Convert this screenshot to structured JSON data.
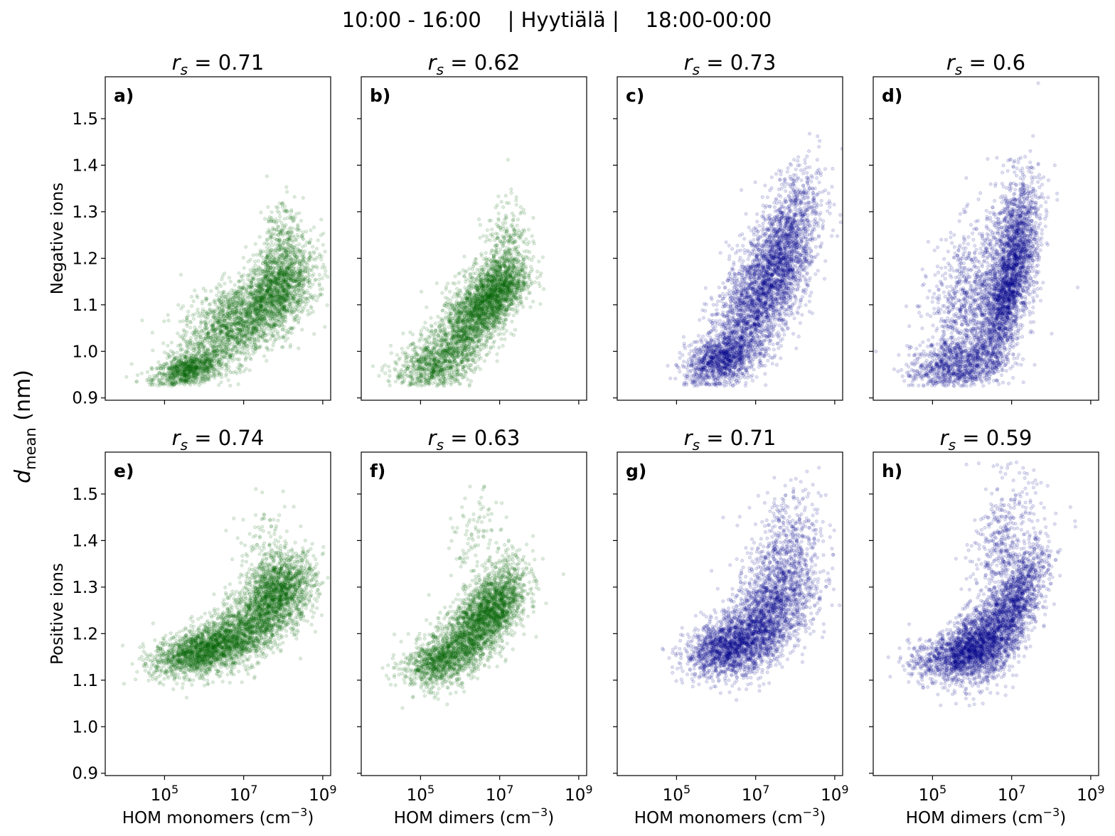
{
  "chart_data": {
    "type": "scatter",
    "suptitle": "10:00 - 16:00    | Hyytiälä |    18:00-00:00",
    "shared_ylabel": "d_mean (nm)",
    "shared_ylabel_main": "d",
    "shared_ylabel_sub": "mean",
    "shared_ylabel_unit": " (nm)",
    "row_labels": [
      "Negative ions",
      "Positive ions"
    ],
    "ylim": [
      0.895,
      1.59
    ],
    "yticks": [
      0.9,
      1.0,
      1.1,
      1.2,
      1.3,
      1.4,
      1.5
    ],
    "ytick_labels": [
      "0.9",
      "1.0",
      "1.1",
      "1.2",
      "1.3",
      "1.4",
      "1.5"
    ],
    "xscale": "log",
    "xlim_log10": [
      3.5,
      9.2
    ],
    "xticks_log10": [
      5,
      7,
      9
    ],
    "xtick_base": "10",
    "xtick_exps": [
      "5",
      "7",
      "9"
    ],
    "xlabels": [
      {
        "text": "HOM monomers (cm",
        "sup": "−3",
        "close": ")"
      },
      {
        "text": "HOM dimers (cm",
        "sup": "−3",
        "close": ")"
      },
      {
        "text": "HOM monomers (cm",
        "sup": "−3",
        "close": ")"
      },
      {
        "text": "HOM dimers (cm",
        "sup": "−3",
        "close": ")"
      }
    ],
    "colors": {
      "day": "#006400",
      "night": "#00008b"
    },
    "panels": [
      {
        "id": "a",
        "label": "a)",
        "row": 0,
        "col": 0,
        "rs": "0.71",
        "color": "day",
        "clusters": [
          [
            5.6,
            0.96,
            0.45,
            0.02,
            900,
            0.5
          ],
          [
            6.8,
            1.06,
            0.7,
            0.05,
            1600,
            0.5
          ],
          [
            7.9,
            1.14,
            0.45,
            0.05,
            1400,
            0.4
          ],
          [
            7.9,
            1.24,
            0.25,
            0.05,
            200,
            0.2
          ]
        ]
      },
      {
        "id": "b",
        "label": "b)",
        "row": 0,
        "col": 1,
        "rs": "0.62",
        "color": "day",
        "clusters": [
          [
            5.3,
            0.97,
            0.5,
            0.03,
            700,
            0.3
          ],
          [
            6.2,
            1.06,
            0.5,
            0.06,
            1400,
            0.6
          ],
          [
            6.9,
            1.12,
            0.4,
            0.04,
            1200,
            0.5
          ],
          [
            7.1,
            1.2,
            0.3,
            0.06,
            400,
            0.3
          ]
        ]
      },
      {
        "id": "c",
        "label": "c)",
        "row": 0,
        "col": 2,
        "rs": "0.73",
        "color": "night",
        "clusters": [
          [
            6.1,
            0.98,
            0.45,
            0.03,
            1000,
            0.4
          ],
          [
            7.0,
            1.1,
            0.6,
            0.08,
            1800,
            0.6
          ],
          [
            7.7,
            1.22,
            0.45,
            0.08,
            1500,
            0.5
          ]
        ]
      },
      {
        "id": "d",
        "label": "d)",
        "row": 0,
        "col": 3,
        "rs": "0.6",
        "color": "night",
        "clusters": [
          [
            5.6,
            0.97,
            0.6,
            0.03,
            900,
            0.3
          ],
          [
            6.1,
            1.1,
            0.6,
            0.09,
            1200,
            0.3
          ],
          [
            6.9,
            1.12,
            0.35,
            0.08,
            1500,
            0.7
          ],
          [
            7.1,
            1.25,
            0.3,
            0.07,
            900,
            0.3
          ]
        ]
      },
      {
        "id": "e",
        "label": "e)",
        "row": 1,
        "col": 0,
        "rs": "0.74",
        "color": "day",
        "clusters": [
          [
            5.8,
            1.16,
            0.55,
            0.025,
            1300,
            0.4
          ],
          [
            6.9,
            1.2,
            0.6,
            0.04,
            1500,
            0.5
          ],
          [
            7.9,
            1.29,
            0.45,
            0.04,
            1500,
            0.3
          ],
          [
            7.5,
            1.36,
            0.4,
            0.06,
            150,
            0.1
          ]
        ]
      },
      {
        "id": "f",
        "label": "f)",
        "row": 1,
        "col": 1,
        "rs": "0.63",
        "color": "day",
        "clusters": [
          [
            5.4,
            1.14,
            0.45,
            0.025,
            700,
            0.3
          ],
          [
            6.2,
            1.2,
            0.5,
            0.05,
            1400,
            0.6
          ],
          [
            6.9,
            1.26,
            0.4,
            0.05,
            1300,
            0.5
          ],
          [
            6.4,
            1.4,
            0.3,
            0.05,
            100,
            0.2
          ]
        ]
      },
      {
        "id": "g",
        "label": "g)",
        "row": 1,
        "col": 2,
        "rs": "0.71",
        "color": "night",
        "clusters": [
          [
            6.3,
            1.17,
            0.55,
            0.03,
            1300,
            0.3
          ],
          [
            7.3,
            1.24,
            0.6,
            0.06,
            1800,
            0.5
          ],
          [
            7.7,
            1.38,
            0.45,
            0.07,
            500,
            0.3
          ]
        ]
      },
      {
        "id": "h",
        "label": "h)",
        "row": 1,
        "col": 3,
        "rs": "0.59",
        "color": "night",
        "clusters": [
          [
            5.5,
            1.15,
            0.55,
            0.025,
            800,
            0.3
          ],
          [
            6.1,
            1.18,
            0.4,
            0.04,
            1200,
            0.4
          ],
          [
            7.0,
            1.25,
            0.45,
            0.07,
            1600,
            0.7
          ],
          [
            6.8,
            1.4,
            0.4,
            0.07,
            400,
            0.3
          ]
        ]
      }
    ],
    "clusters_format": "[center_log10x, center_y, sd_log10x, sd_y, n_points, xy_correlation] — approximate point-cloud summary",
    "grid": false,
    "legend": "none"
  }
}
